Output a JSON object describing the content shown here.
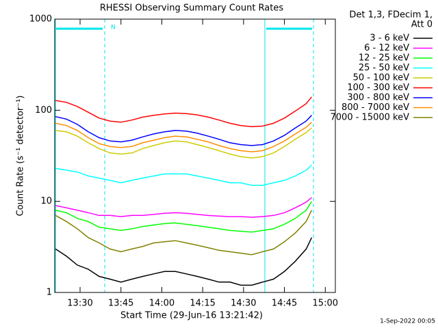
{
  "chart_data": {
    "type": "line",
    "title": "RHESSI Observing Summary Count Rates",
    "xlabel": "Start Time (29-Jun-16 13:21:42)",
    "ylabel": "Count Rate (s⁻¹ detector⁻¹)",
    "legend_title": [
      "Det 1,3, FDecim 1,",
      "Att 0"
    ],
    "footer": "1-Sep-2022 00:05",
    "annotations": [
      "N"
    ],
    "log_y": true,
    "xlim": [
      800.7,
      903.7
    ],
    "ylim": [
      1,
      1000
    ],
    "xticks": [
      {
        "value": 810,
        "label": "13:30"
      },
      {
        "value": 825,
        "label": "13:45"
      },
      {
        "value": 840,
        "label": "14:00"
      },
      {
        "value": 855,
        "label": "14:15"
      },
      {
        "value": 870,
        "label": "14:30"
      },
      {
        "value": 885,
        "label": "14:45"
      },
      {
        "value": 900,
        "label": "15:00"
      }
    ],
    "yticks": [
      1,
      10,
      100,
      1000
    ],
    "x": [
      801,
      805,
      809,
      813,
      817,
      821,
      825,
      829,
      833,
      837,
      841,
      845,
      849,
      853,
      857,
      861,
      865,
      869,
      873,
      877,
      881,
      885,
      889,
      893,
      895
    ],
    "series": [
      {
        "name": "3 - 6 keV",
        "color": "#000000",
        "values": [
          3,
          2.5,
          2,
          1.8,
          1.5,
          1.4,
          1.3,
          1.4,
          1.5,
          1.6,
          1.7,
          1.7,
          1.6,
          1.5,
          1.4,
          1.3,
          1.3,
          1.2,
          1.2,
          1.3,
          1.4,
          1.7,
          2.2,
          3,
          4
        ]
      },
      {
        "name": "6 - 12 keV",
        "color": "#ff00ff",
        "values": [
          9,
          8.5,
          8,
          7.5,
          7,
          7,
          6.8,
          7,
          7,
          7.2,
          7.4,
          7.5,
          7.4,
          7.2,
          7,
          6.9,
          6.8,
          6.8,
          6.7,
          6.8,
          7,
          7.5,
          8.5,
          9.8,
          11
        ]
      },
      {
        "name": "12 - 25 keV",
        "color": "#00ff00",
        "values": [
          8,
          7.5,
          6.5,
          6,
          5.2,
          5,
          4.8,
          5,
          5.3,
          5.5,
          5.7,
          5.8,
          5.6,
          5.4,
          5.2,
          5,
          4.8,
          4.7,
          4.6,
          4.8,
          5,
          5.6,
          6.5,
          8,
          10
        ]
      },
      {
        "name": "25 - 50 keV",
        "color": "#00ffff",
        "values": [
          23,
          22,
          21,
          19,
          18,
          17,
          16,
          17,
          18,
          19,
          20,
          20,
          20,
          19,
          18,
          17,
          16,
          16,
          15,
          15,
          16,
          17,
          19,
          22,
          25
        ]
      },
      {
        "name": "50 - 100 keV",
        "color": "#cccc00",
        "values": [
          60,
          58,
          52,
          44,
          38,
          34,
          33,
          34,
          38,
          41,
          44,
          46,
          45,
          42,
          39,
          36,
          33,
          31,
          30,
          31,
          34,
          40,
          48,
          57,
          64
        ]
      },
      {
        "name": "100 - 300 keV",
        "color": "#ff0000",
        "values": [
          128,
          122,
          110,
          95,
          82,
          76,
          74,
          78,
          84,
          88,
          91,
          93,
          92,
          89,
          84,
          78,
          72,
          68,
          66,
          67,
          72,
          82,
          98,
          118,
          140
        ]
      },
      {
        "name": "300 - 800 keV",
        "color": "#0000ff",
        "values": [
          85,
          80,
          70,
          58,
          50,
          46,
          45,
          47,
          51,
          55,
          58,
          60,
          59,
          56,
          52,
          48,
          44,
          42,
          41,
          42,
          46,
          53,
          64,
          76,
          88
        ]
      },
      {
        "name": "800 - 7000 keV",
        "color": "#ff8c00",
        "values": [
          72,
          68,
          60,
          50,
          43,
          40,
          39,
          40,
          44,
          47,
          50,
          52,
          51,
          48,
          45,
          41,
          38,
          36,
          35,
          36,
          40,
          46,
          55,
          65,
          74
        ]
      },
      {
        "name": "7000 - 15000 keV",
        "color": "#808000",
        "values": [
          7,
          6,
          5,
          4,
          3.5,
          3,
          2.8,
          3,
          3.2,
          3.5,
          3.6,
          3.7,
          3.5,
          3.3,
          3.1,
          2.9,
          2.8,
          2.7,
          2.6,
          2.8,
          3,
          3.6,
          4.5,
          6,
          8
        ]
      }
    ]
  }
}
